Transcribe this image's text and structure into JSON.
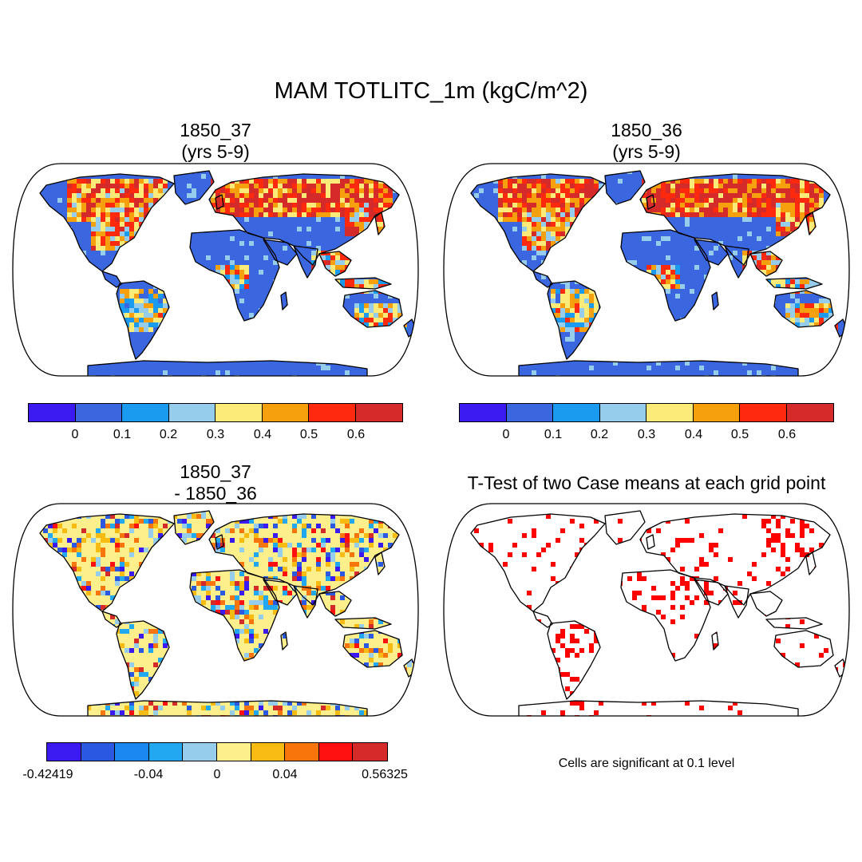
{
  "figure": {
    "title": "MAM TOTLITC_1m (kgC/m^2)"
  },
  "panels": {
    "top_left": {
      "title_line1": "1850_37",
      "title_line2": "(yrs 5-9)"
    },
    "top_right": {
      "title_line1": "1850_36",
      "title_line2": "(yrs 5-9)"
    },
    "bottom_left": {
      "title_line1": "1850_37",
      "title_line2": "- 1850_36"
    },
    "bottom_right": {
      "title": "T-Test of two Case means at each grid point",
      "note": "Cells are significant at 0.1 level"
    }
  },
  "colors": {
    "abs_scale": [
      "#3a1af0",
      "#3a66e0",
      "#1a9bf0",
      "#96cdec",
      "#fceb78",
      "#f7a00d",
      "#ff2a0e",
      "#d42a2a"
    ],
    "diff_scale": [
      "#3a1af0",
      "#2a58e0",
      "#1a86f0",
      "#22a8f0",
      "#96cdec",
      "#fcef8c",
      "#f7bb11",
      "#f7750a",
      "#ff1010",
      "#d42a2a"
    ],
    "significance": "#ff0000",
    "ocean": "#ffffff",
    "coast": "#000000"
  },
  "chart_data": [
    {
      "type": "heatmap",
      "title": "1850_37 (yrs 5-9)",
      "units": "kgC/m^2",
      "colorbar_ticks": [
        "0",
        "0.1",
        "0.2",
        "0.3",
        "0.4",
        "0.5",
        "0.6"
      ],
      "colorbar_levels": [
        0,
        0.1,
        0.2,
        0.3,
        0.4,
        0.5,
        0.6
      ]
    },
    {
      "type": "heatmap",
      "title": "1850_36 (yrs 5-9)",
      "units": "kgC/m^2",
      "colorbar_ticks": [
        "0",
        "0.1",
        "0.2",
        "0.3",
        "0.4",
        "0.5",
        "0.6"
      ],
      "colorbar_levels": [
        0,
        0.1,
        0.2,
        0.3,
        0.4,
        0.5,
        0.6
      ]
    },
    {
      "type": "heatmap",
      "title": "1850_37 - 1850_36",
      "units": "kgC/m^2",
      "colorbar_ticks": [
        "-0.42419",
        "-0.04",
        "0",
        "0.04",
        "0.56325"
      ],
      "colorbar_min": -0.42419,
      "colorbar_max": 0.56325
    },
    {
      "type": "heatmap",
      "title": "T-Test of two Case means at each grid point",
      "annotation": "Cells are significant at 0.1 level",
      "significance_level": 0.1
    }
  ]
}
